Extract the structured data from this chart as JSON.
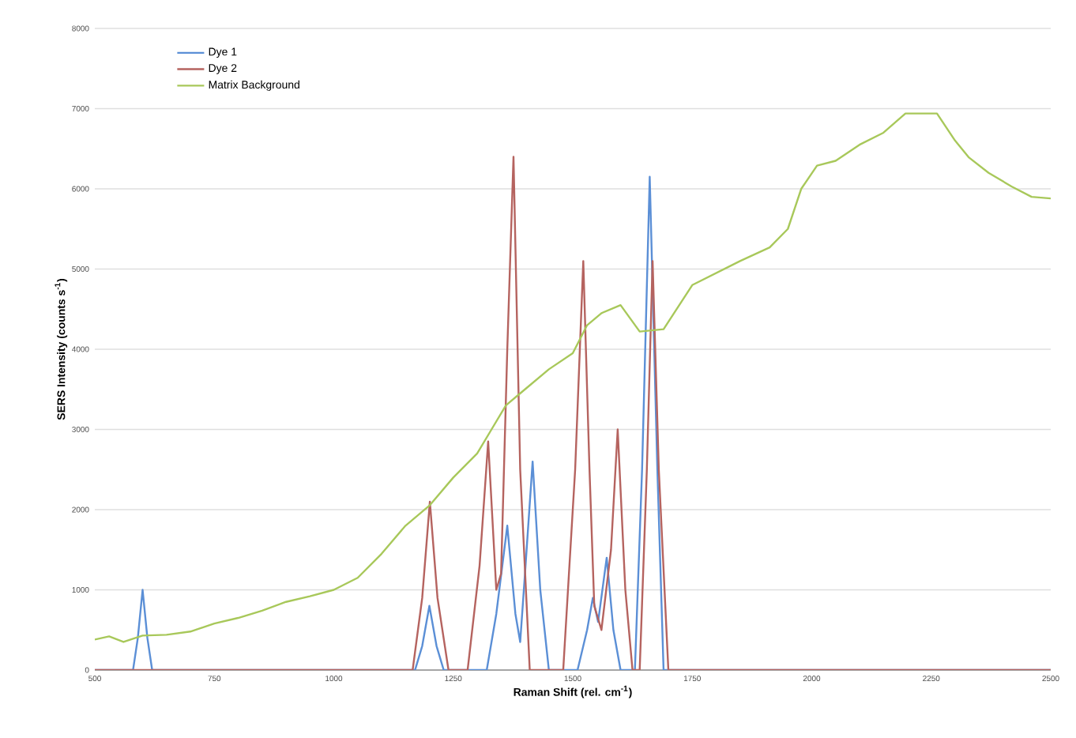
{
  "chart_data": {
    "type": "line",
    "xlabel": "Raman Shift (rel. cm$^{-1}$)",
    "ylabel": "SERS Intensity (counts s$^{-1}$)",
    "xlim": [
      500,
      2500
    ],
    "xticks": [
      500,
      750,
      1000,
      1250,
      1500,
      1750,
      2000,
      2250,
      2500
    ],
    "ylim": [
      0,
      8000
    ],
    "yticks": [
      0,
      1000,
      2000,
      3000,
      4000,
      5000,
      6000,
      7000,
      8000
    ],
    "grid": "y",
    "legend": "top left",
    "marker": "none",
    "line_style": "solid",
    "series": [
      {
        "name": "Dye 1",
        "color": "#5b8fd6",
        "x": [
          500,
          580,
          590,
          600,
          610,
          620,
          1170,
          1185,
          1200,
          1215,
          1230,
          1320,
          1340,
          1363,
          1380,
          1390,
          1400,
          1416,
          1432,
          1450,
          1510,
          1530,
          1542,
          1553,
          1571,
          1585,
          1600,
          1630,
          1645,
          1661,
          1677,
          1690,
          2500
        ],
        "values": [
          0,
          0,
          400,
          1000,
          400,
          0,
          0,
          300,
          800,
          300,
          0,
          0,
          700,
          1800,
          700,
          350,
          1200,
          2600,
          1000,
          0,
          0,
          500,
          900,
          600,
          1400,
          500,
          0,
          0,
          2500,
          6150,
          2500,
          0,
          0
        ]
      },
      {
        "name": "Dye 2",
        "color": "#b5635f",
        "x": [
          500,
          1165,
          1185,
          1201,
          1217,
          1240,
          1280,
          1305,
          1323,
          1340,
          1350,
          1363,
          1376,
          1390,
          1410,
          1480,
          1505,
          1522,
          1535,
          1545,
          1560,
          1580,
          1594,
          1610,
          1625,
          1640,
          1655,
          1667,
          1680,
          1700,
          2500
        ],
        "values": [
          0,
          0,
          900,
          2100,
          900,
          0,
          0,
          1300,
          2850,
          1000,
          1200,
          4000,
          6400,
          2500,
          0,
          0,
          2500,
          5100,
          2500,
          800,
          500,
          1500,
          3000,
          1000,
          0,
          0,
          2500,
          5100,
          2500,
          0,
          0
        ]
      },
      {
        "name": "Matrix Background",
        "color": "#a8c85a",
        "x": [
          500,
          530,
          560,
          600,
          650,
          700,
          750,
          800,
          850,
          900,
          950,
          1000,
          1050,
          1100,
          1150,
          1200,
          1250,
          1300,
          1330,
          1360,
          1400,
          1450,
          1500,
          1530,
          1560,
          1600,
          1640,
          1690,
          1750,
          1800,
          1850,
          1912,
          1950,
          1978,
          2011,
          2050,
          2100,
          2150,
          2196,
          2262,
          2300,
          2329,
          2370,
          2418,
          2460,
          2500
        ],
        "values": [
          380,
          420,
          350,
          430,
          440,
          480,
          580,
          650,
          740,
          850,
          920,
          1000,
          1150,
          1450,
          1800,
          2050,
          2400,
          2700,
          3000,
          3300,
          3500,
          3750,
          3950,
          4300,
          4450,
          4550,
          4220,
          4250,
          4800,
          4950,
          5100,
          5270,
          5500,
          6000,
          6290,
          6350,
          6550,
          6700,
          6940,
          6940,
          6600,
          6390,
          6200,
          6030,
          5900,
          5880
        ]
      }
    ]
  }
}
